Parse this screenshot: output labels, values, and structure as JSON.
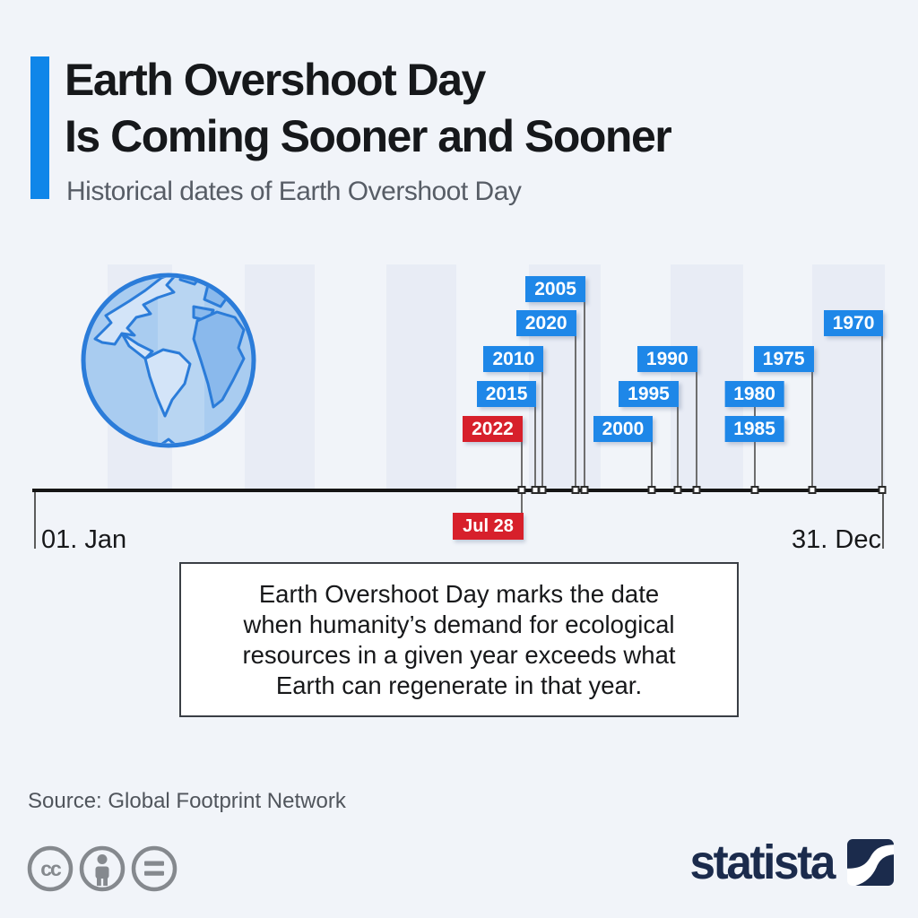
{
  "header": {
    "title_line1": "Earth Overshoot Day",
    "title_line2": "Is Coming Sooner and Sooner",
    "subtitle": "Historical dates of Earth Overshoot Day",
    "accent_color": "#0f86e9"
  },
  "chart_data": {
    "type": "timeline",
    "title": "Historical dates of Earth Overshoot Day",
    "axis": {
      "start_label": "01. Jan",
      "end_label": "31. Dec",
      "days_in_year": 365
    },
    "flag_colors": {
      "blue": "#1e87e8",
      "red": "#d7202b"
    },
    "shaded_months": [
      "Feb",
      "Apr",
      "Jun",
      "Aug",
      "Oct",
      "Dec"
    ],
    "shaded_month_color": "#e8ecf5",
    "events": [
      {
        "year": "2005",
        "day_of_year": 236,
        "row": 0,
        "align": "right",
        "color": "blue"
      },
      {
        "year": "2020",
        "day_of_year": 232,
        "row": 1,
        "align": "right",
        "color": "blue"
      },
      {
        "year": "1970",
        "day_of_year": 364,
        "row": 1,
        "align": "right",
        "color": "blue"
      },
      {
        "year": "2010",
        "day_of_year": 218,
        "row": 2,
        "align": "right",
        "color": "blue"
      },
      {
        "year": "1990",
        "day_of_year": 284,
        "row": 2,
        "align": "right",
        "color": "blue"
      },
      {
        "year": "1975",
        "day_of_year": 334,
        "row": 2,
        "align": "right",
        "color": "blue"
      },
      {
        "year": "2015",
        "day_of_year": 215,
        "row": 3,
        "align": "right",
        "color": "blue"
      },
      {
        "year": "1995",
        "day_of_year": 276,
        "row": 3,
        "align": "right",
        "color": "blue"
      },
      {
        "year": "1980",
        "day_of_year": 309,
        "row": 3,
        "align": "center",
        "color": "blue"
      },
      {
        "year": "2022",
        "day_of_year": 209,
        "row": 4,
        "align": "right",
        "color": "red",
        "date_label": "Jul 28"
      },
      {
        "year": "2000",
        "day_of_year": 265,
        "row": 4,
        "align": "right",
        "color": "blue"
      },
      {
        "year": "1985",
        "day_of_year": 309,
        "row": 4,
        "align": "center",
        "color": "blue"
      }
    ]
  },
  "note_box": {
    "lines": [
      "Earth Overshoot Day marks the date",
      "when humanity’s demand for ecological",
      "resources in a given year exceeds what",
      "Earth can regenerate in that year."
    ]
  },
  "footer": {
    "source": "Source: Global Footprint Network",
    "license_icons": [
      "cc-icon",
      "attribution-icon",
      "no-derivatives-icon"
    ],
    "brand_text": "statista",
    "brand_color": "#1b2b4c"
  },
  "colors": {
    "background": "#f1f4f9",
    "axis": "#151515",
    "stem": "#6e6e6e",
    "title_text": "#16181b",
    "subtitle_text": "#575d66",
    "license_gray": "#85898e"
  }
}
